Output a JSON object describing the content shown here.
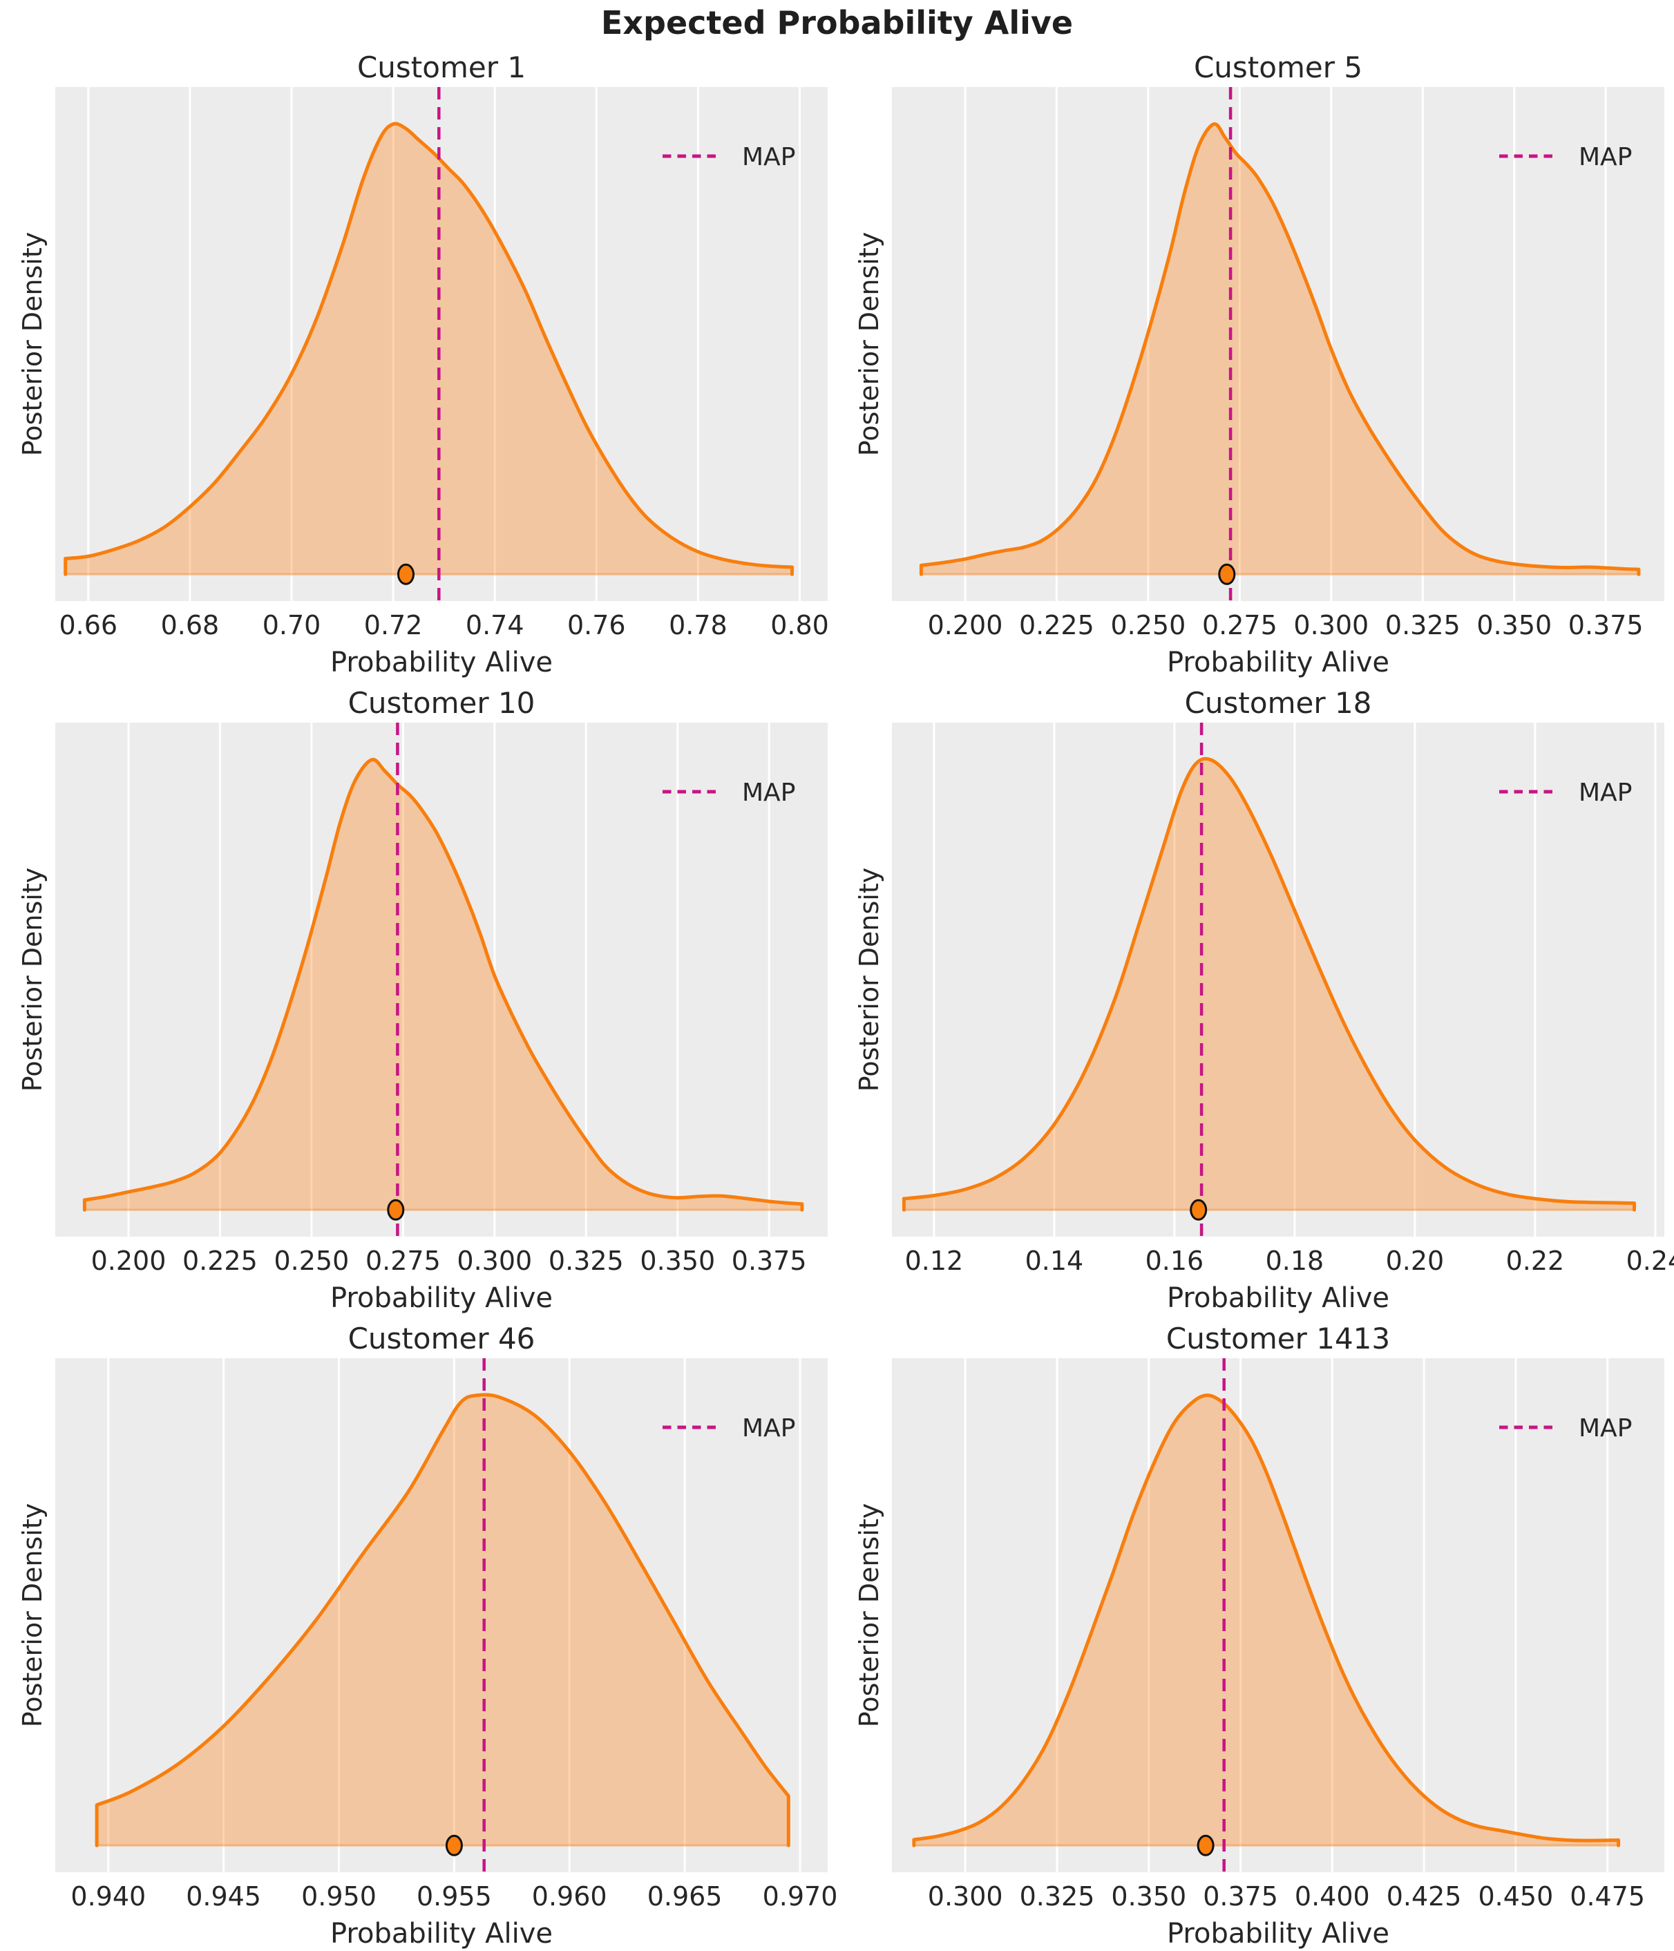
{
  "figure": {
    "title": "Expected Probability Alive"
  },
  "legend": {
    "label": "MAP"
  },
  "colors": {
    "plot_bg": "#ECECEC",
    "grid": "#FFFFFF",
    "density_line": "#F87E0E",
    "density_fill": "#FF7F0E",
    "density_fill_opacity": 0.34,
    "map_line": "#C71585",
    "dot_fill": "#F87E0E",
    "dot_edge": "#111111",
    "text": "#262626"
  },
  "chart_data": [
    {
      "type": "area",
      "title": "Customer 1",
      "xlabel": "Probability Alive",
      "ylabel": "Posterior Density",
      "xlim": [
        0.6535,
        0.8055
      ],
      "xticks": [
        0.66,
        0.68,
        0.7,
        0.72,
        0.74,
        0.76,
        0.78,
        0.8
      ],
      "xtick_labels": [
        "0.66",
        "0.68",
        "0.70",
        "0.72",
        "0.74",
        "0.76",
        "0.78",
        "0.80"
      ],
      "map_value": 0.729,
      "rug_point": 0.7225,
      "density": {
        "x": [
          0.6555,
          0.66,
          0.665,
          0.67,
          0.675,
          0.68,
          0.685,
          0.69,
          0.695,
          0.7,
          0.705,
          0.71,
          0.714,
          0.7175,
          0.72,
          0.7225,
          0.725,
          0.728,
          0.731,
          0.734,
          0.738,
          0.742,
          0.746,
          0.75,
          0.754,
          0.758,
          0.762,
          0.766,
          0.77,
          0.775,
          0.78,
          0.785,
          0.79,
          0.7945,
          0.7985
        ],
        "y": [
          0.035,
          0.04,
          0.055,
          0.075,
          0.105,
          0.15,
          0.205,
          0.275,
          0.35,
          0.445,
          0.57,
          0.73,
          0.875,
          0.97,
          1.0,
          0.99,
          0.965,
          0.935,
          0.9,
          0.865,
          0.8,
          0.72,
          0.63,
          0.525,
          0.425,
          0.33,
          0.25,
          0.18,
          0.125,
          0.08,
          0.05,
          0.033,
          0.023,
          0.018,
          0.016
        ]
      }
    },
    {
      "type": "area",
      "title": "Customer 5",
      "xlabel": "Probability Alive",
      "ylabel": "Posterior Density",
      "xlim": [
        0.18,
        0.391
      ],
      "xticks": [
        0.2,
        0.225,
        0.25,
        0.275,
        0.3,
        0.325,
        0.35,
        0.375
      ],
      "xtick_labels": [
        "0.200",
        "0.225",
        "0.250",
        "0.275",
        "0.300",
        "0.325",
        "0.350",
        "0.375"
      ],
      "map_value": 0.2725,
      "rug_point": 0.2715,
      "density": {
        "x": [
          0.188,
          0.194,
          0.2,
          0.206,
          0.211,
          0.216,
          0.221,
          0.226,
          0.231,
          0.236,
          0.241,
          0.246,
          0.251,
          0.256,
          0.26,
          0.264,
          0.268,
          0.271,
          0.274,
          0.277,
          0.28,
          0.284,
          0.288,
          0.292,
          0.296,
          0.3,
          0.305,
          0.31,
          0.315,
          0.32,
          0.325,
          0.33,
          0.335,
          0.34,
          0.346,
          0.352,
          0.358,
          0.364,
          0.37,
          0.376,
          0.38,
          0.384
        ],
        "y": [
          0.02,
          0.026,
          0.034,
          0.045,
          0.053,
          0.06,
          0.075,
          0.105,
          0.15,
          0.215,
          0.31,
          0.43,
          0.565,
          0.715,
          0.85,
          0.955,
          1.0,
          0.97,
          0.935,
          0.91,
          0.88,
          0.825,
          0.755,
          0.675,
          0.59,
          0.5,
          0.405,
          0.33,
          0.265,
          0.205,
          0.15,
          0.1,
          0.065,
          0.042,
          0.028,
          0.021,
          0.017,
          0.015,
          0.016,
          0.014,
          0.012,
          0.011
        ]
      }
    },
    {
      "type": "area",
      "title": "Customer 10",
      "xlabel": "Probability Alive",
      "ylabel": "Posterior Density",
      "xlim": [
        0.18,
        0.391
      ],
      "xticks": [
        0.2,
        0.225,
        0.25,
        0.275,
        0.3,
        0.325,
        0.35,
        0.375
      ],
      "xtick_labels": [
        "0.200",
        "0.225",
        "0.250",
        "0.275",
        "0.300",
        "0.325",
        "0.350",
        "0.375"
      ],
      "map_value": 0.2735,
      "rug_point": 0.273,
      "density": {
        "x": [
          0.188,
          0.194,
          0.2,
          0.206,
          0.212,
          0.218,
          0.224,
          0.229,
          0.234,
          0.239,
          0.244,
          0.249,
          0.254,
          0.258,
          0.262,
          0.2665,
          0.27,
          0.2735,
          0.277,
          0.28,
          0.284,
          0.288,
          0.292,
          0.296,
          0.3,
          0.305,
          0.31,
          0.315,
          0.32,
          0.325,
          0.33,
          0.335,
          0.34,
          0.345,
          0.35,
          0.356,
          0.362,
          0.368,
          0.374,
          0.379,
          0.384
        ],
        "y": [
          0.022,
          0.03,
          0.04,
          0.05,
          0.062,
          0.082,
          0.118,
          0.17,
          0.24,
          0.335,
          0.455,
          0.59,
          0.74,
          0.865,
          0.955,
          1.0,
          0.975,
          0.945,
          0.92,
          0.89,
          0.84,
          0.775,
          0.7,
          0.615,
          0.52,
          0.43,
          0.35,
          0.28,
          0.215,
          0.155,
          0.1,
          0.065,
          0.043,
          0.031,
          0.027,
          0.03,
          0.031,
          0.026,
          0.02,
          0.016,
          0.013
        ]
      }
    },
    {
      "type": "area",
      "title": "Customer 18",
      "xlabel": "Probability Alive",
      "ylabel": "Posterior Density",
      "xlim": [
        0.113,
        0.2415
      ],
      "xticks": [
        0.12,
        0.14,
        0.16,
        0.18,
        0.2,
        0.22,
        0.24
      ],
      "xtick_labels": [
        "0.12",
        "0.14",
        "0.16",
        "0.18",
        "0.20",
        "0.22",
        "0.24"
      ],
      "map_value": 0.1645,
      "rug_point": 0.164,
      "density": {
        "x": [
          0.115,
          0.12,
          0.125,
          0.13,
          0.135,
          0.14,
          0.145,
          0.15,
          0.154,
          0.158,
          0.161,
          0.1635,
          0.166,
          0.169,
          0.172,
          0.176,
          0.18,
          0.184,
          0.188,
          0.192,
          0.196,
          0.2,
          0.205,
          0.21,
          0.215,
          0.22,
          0.226,
          0.2365
        ],
        "y": [
          0.025,
          0.032,
          0.045,
          0.07,
          0.115,
          0.19,
          0.305,
          0.465,
          0.63,
          0.8,
          0.925,
          0.99,
          1.0,
          0.965,
          0.9,
          0.79,
          0.665,
          0.54,
          0.42,
          0.315,
          0.225,
          0.155,
          0.095,
          0.058,
          0.036,
          0.025,
          0.018,
          0.015
        ]
      }
    },
    {
      "type": "area",
      "title": "Customer 46",
      "xlabel": "Probability Alive",
      "ylabel": "Posterior Density",
      "xlim": [
        0.9377,
        0.9712
      ],
      "xticks": [
        0.94,
        0.945,
        0.95,
        0.955,
        0.96,
        0.965,
        0.97
      ],
      "xtick_labels": [
        "0.940",
        "0.945",
        "0.950",
        "0.955",
        "0.960",
        "0.965",
        "0.970"
      ],
      "map_value": 0.9563,
      "rug_point": 0.955,
      "density": {
        "x": [
          0.9395,
          0.941,
          0.943,
          0.945,
          0.947,
          0.949,
          0.951,
          0.953,
          0.9545,
          0.9553,
          0.956,
          0.957,
          0.9585,
          0.96,
          0.9615,
          0.963,
          0.9645,
          0.966,
          0.9675,
          0.9685,
          0.9695
        ],
        "y": [
          0.09,
          0.12,
          0.18,
          0.265,
          0.375,
          0.5,
          0.645,
          0.785,
          0.92,
          0.985,
          1.0,
          0.995,
          0.955,
          0.875,
          0.765,
          0.635,
          0.5,
          0.365,
          0.25,
          0.175,
          0.11
        ]
      }
    },
    {
      "type": "area",
      "title": "Customer 1413",
      "xlabel": "Probability Alive",
      "ylabel": "Posterior Density",
      "xlim": [
        0.28,
        0.4905
      ],
      "xticks": [
        0.3,
        0.325,
        0.35,
        0.375,
        0.4,
        0.425,
        0.45,
        0.475
      ],
      "xtick_labels": [
        "0.300",
        "0.325",
        "0.350",
        "0.375",
        "0.400",
        "0.425",
        "0.450",
        "0.475"
      ],
      "map_value": 0.3705,
      "rug_point": 0.3655,
      "density": {
        "x": [
          0.286,
          0.292,
          0.298,
          0.304,
          0.31,
          0.316,
          0.322,
          0.328,
          0.334,
          0.34,
          0.346,
          0.352,
          0.357,
          0.362,
          0.366,
          0.37,
          0.374,
          0.378,
          0.382,
          0.386,
          0.39,
          0.394,
          0.398,
          0.402,
          0.406,
          0.41,
          0.415,
          0.42,
          0.425,
          0.43,
          0.435,
          0.44,
          0.446,
          0.452,
          0.458,
          0.464,
          0.47,
          0.478
        ],
        "y": [
          0.013,
          0.02,
          0.032,
          0.052,
          0.088,
          0.145,
          0.225,
          0.335,
          0.465,
          0.6,
          0.74,
          0.86,
          0.94,
          0.985,
          1.0,
          0.985,
          0.95,
          0.9,
          0.83,
          0.745,
          0.655,
          0.565,
          0.48,
          0.4,
          0.33,
          0.27,
          0.205,
          0.152,
          0.11,
          0.078,
          0.056,
          0.042,
          0.033,
          0.024,
          0.016,
          0.012,
          0.011,
          0.012
        ]
      }
    }
  ]
}
